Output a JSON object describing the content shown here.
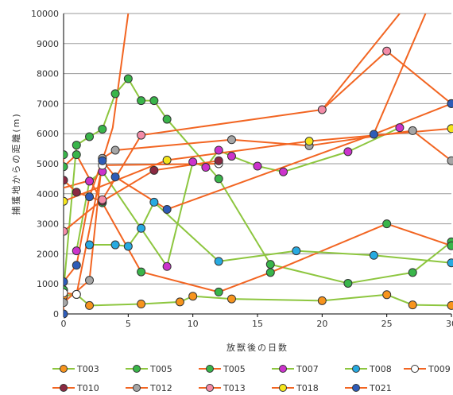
{
  "chart_data": {
    "type": "line",
    "xlabel": "放獣後の日数",
    "ylabel": "捕獲地からの距離(m)",
    "xlim": [
      0,
      30
    ],
    "ylim": [
      0,
      10000
    ],
    "x_ticks": [
      0,
      5,
      10,
      15,
      20,
      25,
      30
    ],
    "y_ticks": [
      0,
      1000,
      2000,
      3000,
      4000,
      5000,
      6000,
      7000,
      8000,
      9000,
      10000
    ],
    "grid": "horizontal",
    "legend_position": "bottom",
    "series": [
      {
        "name": "T003",
        "line_color": "#8dc63f",
        "marker_color": "#f7941d",
        "points": [
          [
            0,
            600
          ],
          [
            1,
            650
          ],
          [
            2,
            280
          ],
          [
            6,
            330
          ],
          [
            9,
            400
          ],
          [
            10,
            590
          ],
          [
            13,
            500
          ],
          [
            20,
            440
          ],
          [
            25,
            640
          ],
          [
            27,
            300
          ],
          [
            30,
            280
          ]
        ]
      },
      {
        "name": "T005",
        "line_color": "#8dc63f",
        "marker_color": "#39b54a",
        "points": [
          [
            0,
            800
          ],
          [
            1,
            5620
          ],
          [
            2,
            5900
          ],
          [
            3,
            6150
          ],
          [
            4,
            7330
          ],
          [
            5,
            7830
          ],
          [
            6,
            7100
          ],
          [
            7,
            7100
          ],
          [
            8,
            6480
          ],
          [
            12,
            4500
          ],
          [
            16,
            1650
          ],
          [
            22,
            1020
          ],
          [
            27,
            1380
          ],
          [
            30,
            2400
          ]
        ]
      },
      {
        "name": "T005",
        "line_color": "#f26522",
        "marker_color": "#39b54a",
        "points": [
          [
            0,
            5300
          ],
          [
            0,
            4900
          ],
          [
            1,
            5300
          ],
          [
            3,
            3700
          ],
          [
            6,
            1400
          ],
          [
            12,
            730
          ],
          [
            16,
            1380
          ],
          [
            25,
            3000
          ],
          [
            30,
            2270
          ]
        ]
      },
      {
        "name": "T007",
        "line_color": "#8dc63f",
        "marker_color": "#cc33cc",
        "points": [
          [
            1,
            2100
          ],
          [
            2,
            4420
          ],
          [
            3,
            4740
          ],
          [
            8,
            1580
          ],
          [
            10,
            5060
          ],
          [
            11,
            4880
          ],
          [
            12,
            5450
          ],
          [
            13,
            5250
          ],
          [
            15,
            4920
          ],
          [
            17,
            4730
          ],
          [
            22,
            5400
          ],
          [
            26,
            6200
          ]
        ]
      },
      {
        "name": "T008",
        "line_color": "#8dc63f",
        "marker_color": "#27aae1",
        "points": [
          [
            2,
            2300
          ],
          [
            4,
            2300
          ],
          [
            5,
            2250
          ],
          [
            6,
            2850
          ],
          [
            7,
            3720
          ],
          [
            12,
            1750
          ],
          [
            18,
            2100
          ],
          [
            24,
            1950
          ],
          [
            30,
            1700
          ]
        ]
      },
      {
        "name": "T009",
        "line_color": "#f26522",
        "marker_color": "#ffffff",
        "points": [
          [
            0,
            700
          ],
          [
            1,
            650
          ],
          [
            3,
            4950
          ],
          [
            12,
            5000
          ]
        ]
      },
      {
        "name": "T010",
        "line_color": "#f26522",
        "marker_color": "#8b2942",
        "points": [
          [
            0,
            4450
          ],
          [
            1,
            4050
          ],
          [
            3,
            3750
          ],
          [
            7,
            4780
          ],
          [
            12,
            5100
          ]
        ]
      },
      {
        "name": "T012",
        "line_color": "#f26522",
        "marker_color": "#a6a6a6",
        "points": [
          [
            0,
            380
          ],
          [
            2,
            1120
          ],
          [
            3,
            5180
          ],
          [
            4,
            5450
          ],
          [
            13,
            5800
          ],
          [
            19,
            5600
          ],
          [
            27,
            6100
          ],
          [
            30,
            5100
          ]
        ]
      },
      {
        "name": "T013",
        "line_color": "#f26522",
        "marker_color": "#f38ba8",
        "points": [
          [
            0,
            2750
          ],
          [
            3,
            3800
          ],
          [
            6,
            5950
          ],
          [
            20,
            6800
          ],
          [
            25,
            8750
          ],
          [
            30,
            7000
          ]
        ]
      },
      {
        "name": "T018",
        "line_color": "#f26522",
        "marker_color": "#f4e51b",
        "points": [
          [
            0,
            3750
          ],
          [
            8,
            5120
          ],
          [
            19,
            5750
          ],
          [
            30,
            6170
          ]
        ]
      },
      {
        "name": "T021",
        "line_color": "#f26522",
        "marker_color": "#2e5cb8",
        "points": [
          [
            0,
            0
          ],
          [
            0,
            1070
          ],
          [
            1,
            1620
          ],
          [
            2,
            3900
          ],
          [
            3,
            5100
          ],
          [
            4,
            4560
          ],
          [
            8,
            3480
          ],
          [
            24,
            5980
          ],
          [
            30,
            7000
          ]
        ]
      }
    ],
    "extra_lines": [
      {
        "color": "#f26522",
        "points": [
          [
            0,
            4200
          ],
          [
            2.5,
            4500
          ],
          [
            3.3,
            5500
          ],
          [
            3.8,
            6200
          ],
          [
            5,
            10000
          ]
        ]
      },
      {
        "color": "#f26522",
        "points": [
          [
            20,
            6800
          ],
          [
            26,
            10000
          ]
        ]
      },
      {
        "color": "#f26522",
        "points": [
          [
            24,
            6000
          ],
          [
            28,
            10000
          ]
        ]
      }
    ]
  }
}
